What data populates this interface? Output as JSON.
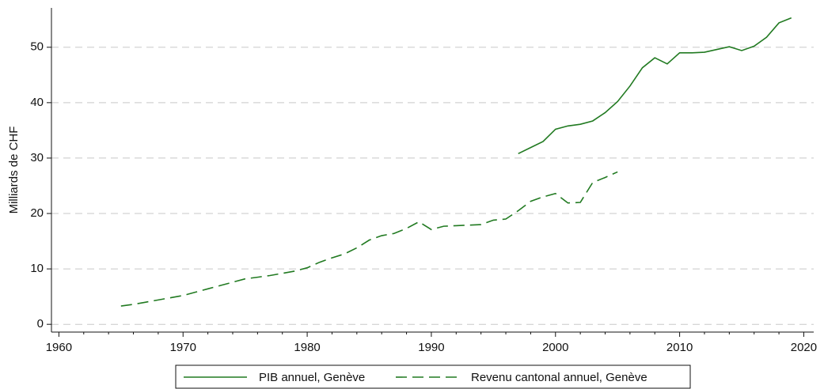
{
  "chart_data": {
    "type": "line",
    "ylabel": "Milliards de CHF",
    "xlim": [
      1959.4,
      2020.8
    ],
    "xticks": [
      1960,
      1970,
      1980,
      1990,
      2000,
      2010,
      2020
    ],
    "xminorticks": [
      1962,
      1964,
      1966,
      1968,
      1972,
      1974,
      1976,
      1978,
      1982,
      1984,
      1986,
      1988,
      1992,
      1994,
      1996,
      1998,
      2002,
      2004,
      2006,
      2008,
      2012,
      2014,
      2016,
      2018
    ],
    "ylim": [
      -1.4,
      57.1
    ],
    "yticks": [
      0,
      10,
      20,
      30,
      40,
      50
    ],
    "grid": true,
    "legend": "bottom",
    "series": [
      {
        "name": "PIB annuel, Genève",
        "color": "#217a21",
        "style": "solid",
        "x": [
          1997,
          1998,
          1999,
          2000,
          2001,
          2002,
          2003,
          2004,
          2005,
          2006,
          2007,
          2008,
          2009,
          2010,
          2011,
          2012,
          2013,
          2014,
          2015,
          2016,
          2017,
          2018,
          2019
        ],
        "values": [
          30.8,
          31.9,
          33.0,
          35.2,
          35.8,
          36.1,
          36.7,
          38.2,
          40.2,
          43.0,
          46.3,
          48.1,
          47.0,
          49.0,
          49.0,
          49.1,
          49.6,
          50.1,
          49.4,
          50.2,
          51.8,
          54.4,
          55.3
        ]
      },
      {
        "name": "Revenu cantonal annuel, Genève",
        "color": "#217a21",
        "style": "dashed",
        "x": [
          1965,
          1966,
          1967,
          1968,
          1969,
          1970,
          1971,
          1972,
          1973,
          1974,
          1975,
          1976,
          1977,
          1978,
          1979,
          1980,
          1981,
          1982,
          1983,
          1984,
          1985,
          1986,
          1987,
          1988,
          1989,
          1990,
          1991,
          1992,
          1993,
          1994,
          1995,
          1996,
          1997,
          1998,
          1999,
          2000,
          2001,
          2002,
          2003,
          2004,
          2005
        ],
        "values": [
          3.3,
          3.6,
          4.0,
          4.4,
          4.8,
          5.2,
          5.8,
          6.4,
          7.0,
          7.6,
          8.2,
          8.5,
          8.8,
          9.2,
          9.6,
          10.2,
          11.2,
          12.0,
          12.7,
          13.8,
          15.2,
          16.0,
          16.4,
          17.3,
          18.5,
          17.1,
          17.7,
          17.8,
          17.9,
          18.0,
          18.8,
          19.0,
          20.5,
          22.2,
          23.0,
          23.6,
          21.9,
          22.0,
          25.6,
          26.5,
          27.5
        ]
      }
    ]
  }
}
